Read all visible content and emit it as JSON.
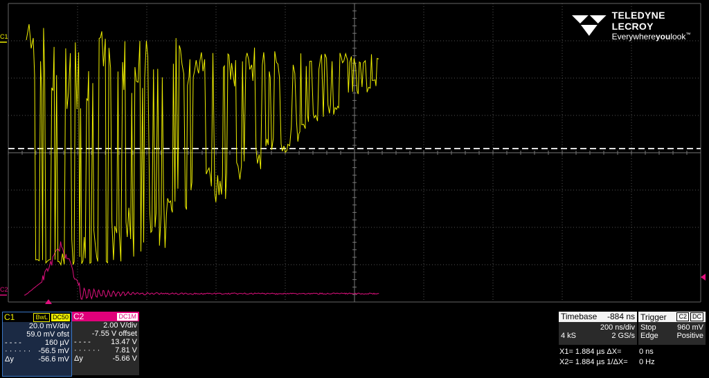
{
  "logo": {
    "brand": "TELEDYNE LECROY",
    "tagline_pre": "Everywhere",
    "tagline_bold": "you",
    "tagline_post": "look",
    "tm": "™"
  },
  "markers": {
    "c1": "C1",
    "c2": "C2"
  },
  "colors": {
    "ch1": "#f0f000",
    "ch2": "#e0107e",
    "grid": "#5a5a5a"
  },
  "c1": {
    "name": "C1",
    "tag1": "BwL",
    "tag2": "DC50",
    "vdiv": "20.0 mV/div",
    "offset": "59.0 mV ofst",
    "r1k": "- - - -",
    "r1v": "160 µV",
    "r2k": "· · · · · ·",
    "r2v": "-56.5 mV",
    "r3k": "Δy",
    "r3v": "-56.6 mV"
  },
  "c2": {
    "name": "C2",
    "tag": "DC1M",
    "vdiv": "2.00 V/div",
    "offset": "-7.55 V offset",
    "r1k": "- - - -",
    "r1v": "13.47 V",
    "r2k": "· · · · · ·",
    "r2v": "7.81 V",
    "r3k": "Δy",
    "r3v": "-5.66 V"
  },
  "timebase": {
    "label": "Timebase",
    "delay": "-884 ns",
    "tdiv": "200 ns/div",
    "samples": "4 kS",
    "rate": "2 GS/s"
  },
  "trigger": {
    "label": "Trigger",
    "src": "C2",
    "coupling": "DC",
    "mode": "Stop",
    "level": "960 mV",
    "type": "Edge",
    "slope": "Positive"
  },
  "cursors": {
    "x1": "X1= 1.884 µs ΔX=",
    "x1v": "0 ns",
    "x2": "X2= 1.884 µs 1/ΔX=",
    "x2v": "0 Hz"
  }
}
